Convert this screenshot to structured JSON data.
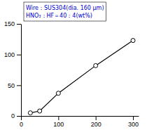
{
  "chart_data": {
    "type": "line",
    "x": [
      25,
      50,
      100,
      200,
      300
    ],
    "values": [
      5,
      8,
      37,
      82,
      123
    ],
    "color": "#000000",
    "marker": "circle",
    "xlim": [
      0,
      315
    ],
    "xticks": [
      0,
      100,
      200,
      300
    ],
    "ylim": [
      0,
      150
    ],
    "yticks": [
      0,
      50,
      100,
      150
    ],
    "annotations": [
      {
        "text": "Wire：SUS304(dia. 160 μm)",
        "color": "#0000cc"
      },
      {
        "text": "HNO₃：HF＝40：4(wt%)",
        "color": "#0000cc"
      }
    ]
  }
}
